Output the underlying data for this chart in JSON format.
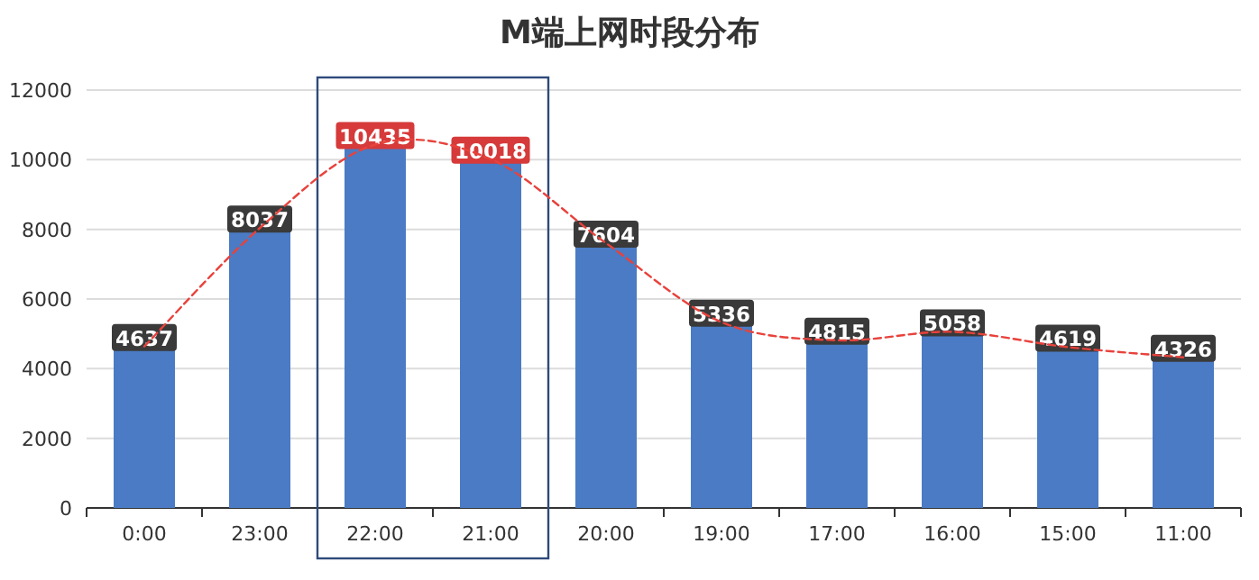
{
  "chart_data": {
    "type": "bar",
    "title": "M端上网时段分布",
    "categories": [
      "0:00",
      "23:00",
      "22:00",
      "21:00",
      "20:00",
      "19:00",
      "17:00",
      "16:00",
      "15:00",
      "11:00"
    ],
    "series": [
      {
        "color": "#4a7bc4",
        "values": [
          4637,
          8037,
          10435,
          10018,
          7604,
          5336,
          4815,
          5058,
          4619,
          4326
        ],
        "value_labels": [
          "4637",
          "8037",
          "10435",
          "10018",
          "7604",
          "5336",
          "4815",
          "5058",
          "4619",
          "4326"
        ]
      },
      {
        "type": "line",
        "color": "#e8423c",
        "line_style": "dashed",
        "marker": "none",
        "values": [
          4637,
          8037,
          10435,
          10018,
          7604,
          5336,
          4815,
          5058,
          4619,
          4326
        ]
      }
    ],
    "ylim": [
      0,
      12000
    ],
    "yticks": [
      0,
      2000,
      4000,
      6000,
      8000,
      10000,
      12000
    ],
    "grid": "y",
    "legend": false
  }
}
